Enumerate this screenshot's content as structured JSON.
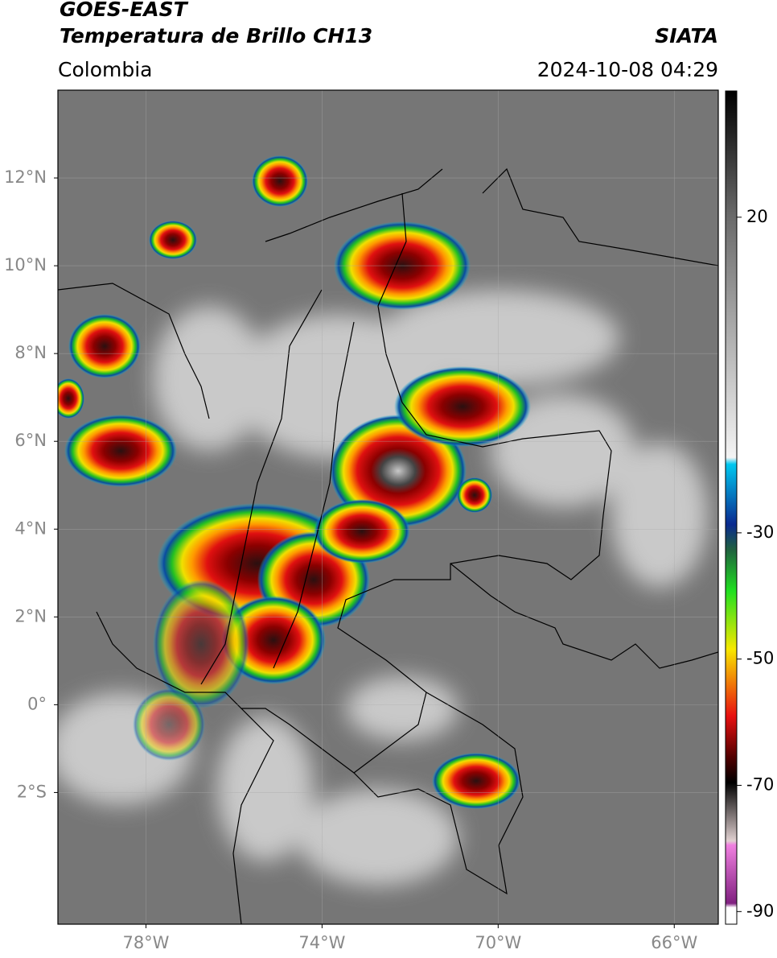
{
  "header": {
    "title": "GOES-EAST",
    "subtitle": "Temperatura de Brillo CH13",
    "region": "Colombia",
    "source": "SIATA",
    "timestamp": "2024-10-08 04:29"
  },
  "map": {
    "xlim": [
      -80,
      -65
    ],
    "ylim": [
      -5,
      14
    ],
    "xticks": [
      {
        "value": -78,
        "label": "78°W"
      },
      {
        "value": -74,
        "label": "74°W"
      },
      {
        "value": -70,
        "label": "70°W"
      },
      {
        "value": -66,
        "label": "66°W"
      }
    ],
    "yticks": [
      {
        "value": 12,
        "label": "12°N"
      },
      {
        "value": 10,
        "label": "10°N"
      },
      {
        "value": 8,
        "label": "8°N"
      },
      {
        "value": 6,
        "label": "6°N"
      },
      {
        "value": 4,
        "label": "4°N"
      },
      {
        "value": 2,
        "label": "2°N"
      },
      {
        "value": 0,
        "label": "0°"
      },
      {
        "value": -2,
        "label": "2°S"
      }
    ],
    "grid": true
  },
  "colorbar": {
    "lim": [
      -92,
      40
    ],
    "ticks": [
      20,
      -30,
      -50,
      -70,
      -90
    ]
  }
}
